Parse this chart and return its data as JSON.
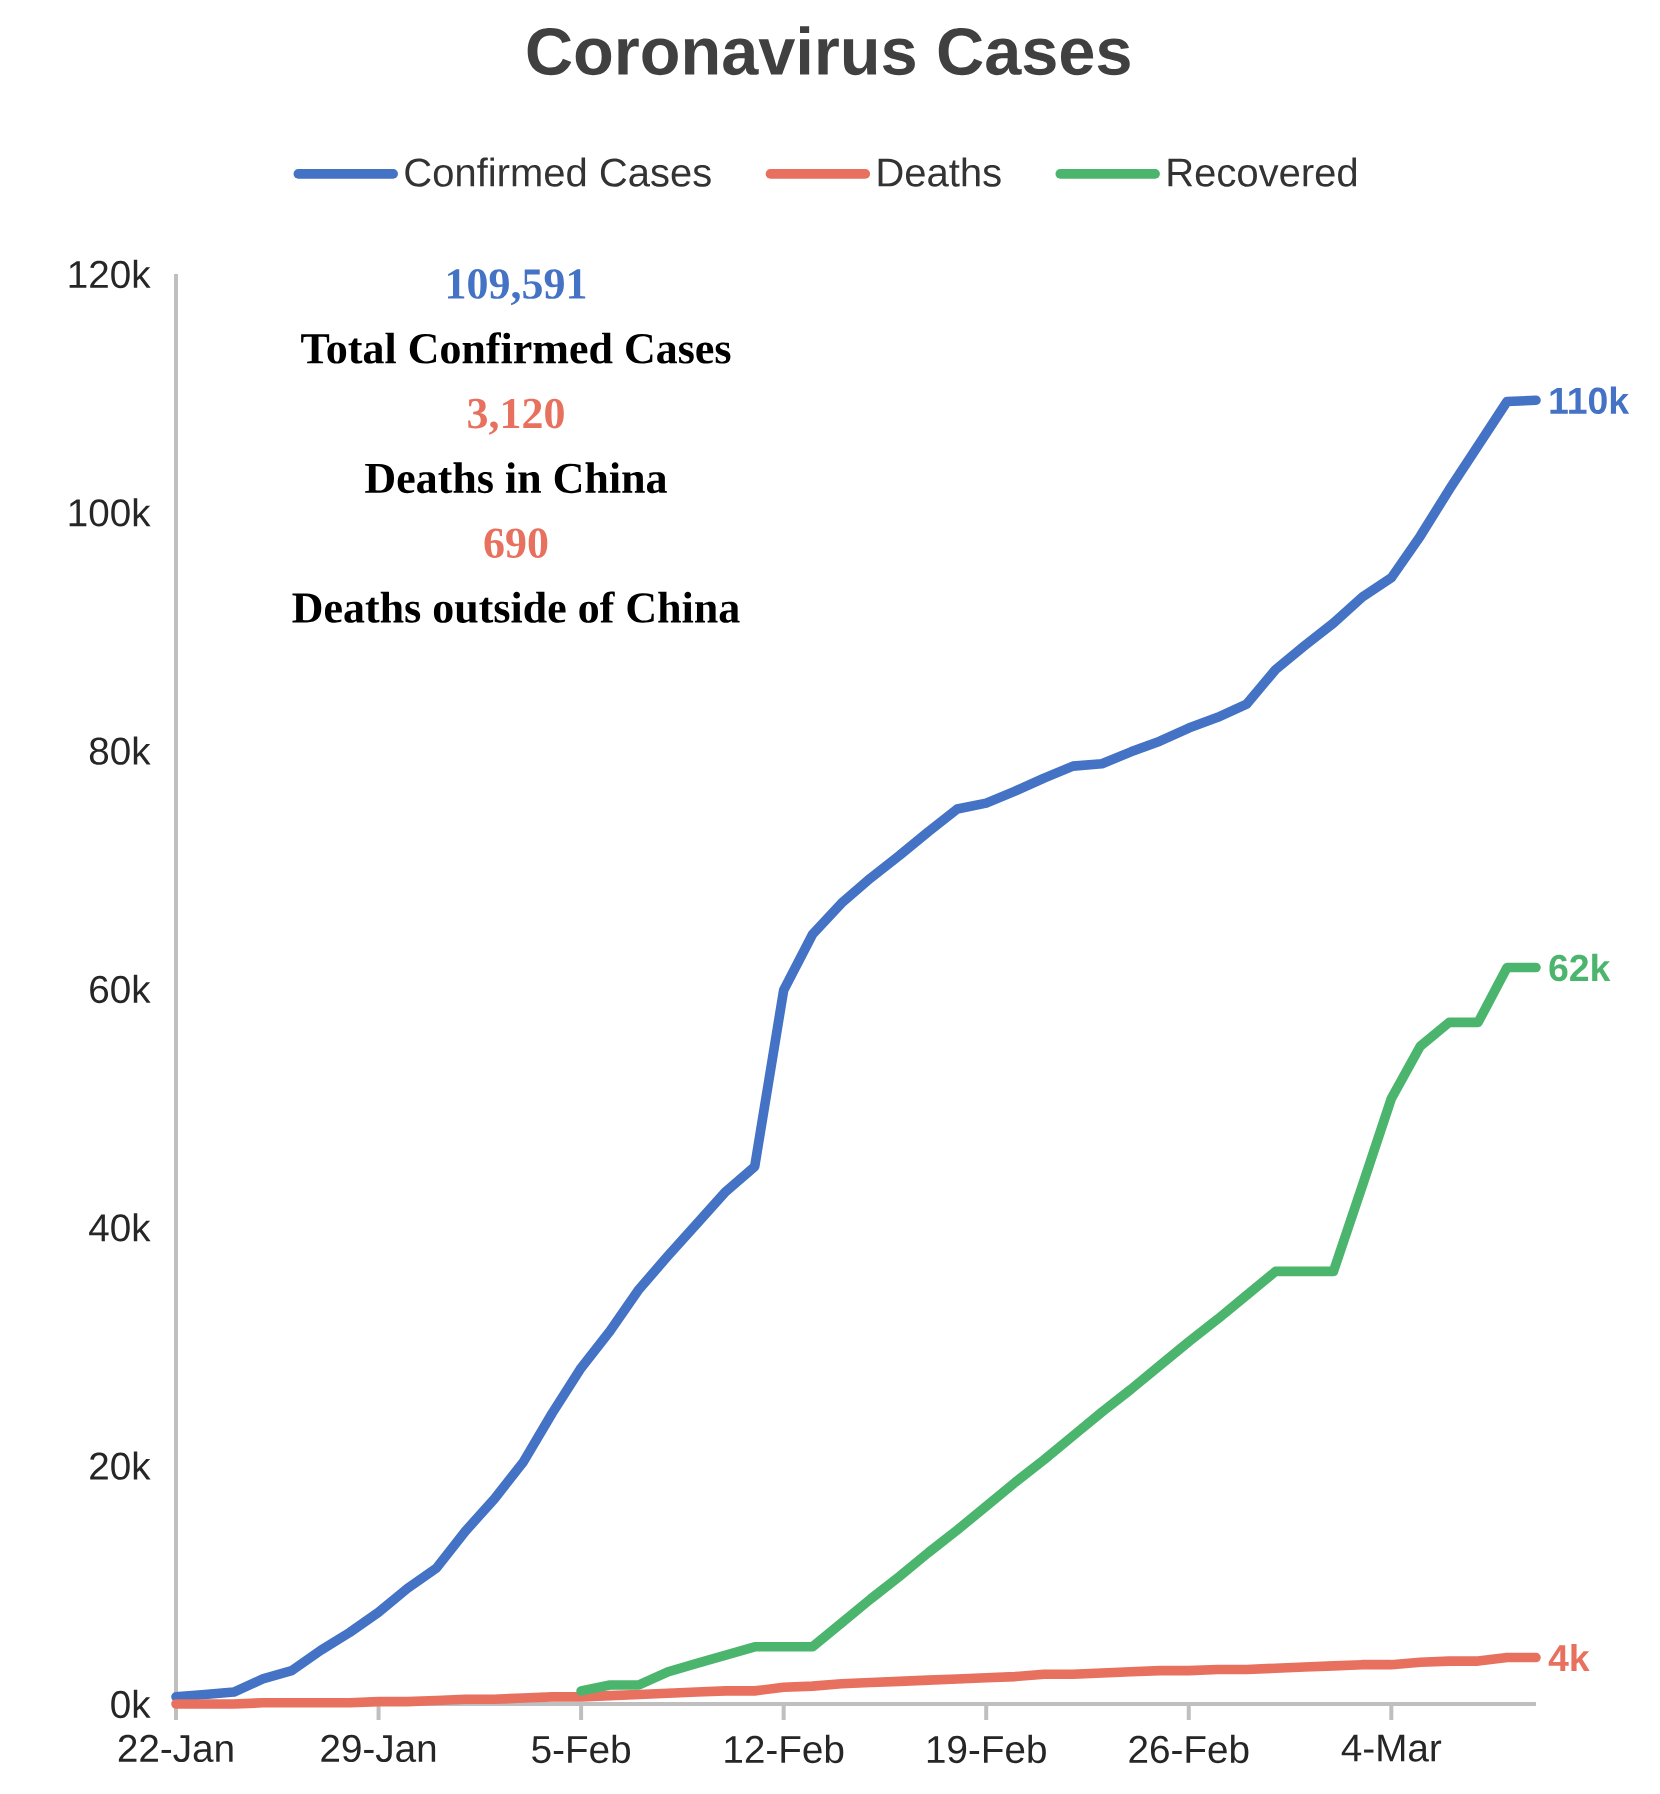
{
  "chart_data": {
    "type": "line",
    "title": "Coronavirus Cases",
    "categories": [
      "22-Jan",
      null,
      null,
      null,
      null,
      null,
      null,
      "29-Jan",
      null,
      null,
      null,
      null,
      null,
      null,
      "5-Feb",
      null,
      null,
      null,
      null,
      null,
      null,
      "12-Feb",
      null,
      null,
      null,
      null,
      null,
      null,
      "19-Feb",
      null,
      null,
      null,
      null,
      null,
      null,
      "26-Feb",
      null,
      null,
      null,
      null,
      null,
      null,
      "4-Mar",
      null,
      null,
      null,
      null,
      null
    ],
    "series": [
      {
        "name": "Confirmed Cases",
        "color": "#4472c4",
        "values": [
          600,
          800,
          1000,
          2100,
          2800,
          4500,
          6000,
          7700,
          9700,
          11400,
          14500,
          17200,
          20300,
          24400,
          28200,
          31300,
          34800,
          37600,
          40300,
          43000,
          45100,
          59900,
          64600,
          67200,
          69300,
          71200,
          73200,
          75100,
          75600,
          76600,
          77700,
          78700,
          78900,
          79900,
          80800,
          81900,
          82800,
          83900,
          86800,
          88800,
          90700,
          92900,
          94500,
          98000,
          101900,
          105600,
          109300,
          109400
        ]
      },
      {
        "name": "Deaths",
        "color": "#e8705f",
        "values": [
          0,
          0,
          0,
          100,
          100,
          100,
          100,
          200,
          200,
          300,
          400,
          400,
          500,
          600,
          600,
          700,
          800,
          900,
          1000,
          1100,
          1100,
          1400,
          1500,
          1700,
          1800,
          1900,
          2000,
          2100,
          2200,
          2300,
          2500,
          2500,
          2600,
          2700,
          2800,
          2800,
          2900,
          2900,
          3000,
          3100,
          3200,
          3300,
          3300,
          3500,
          3600,
          3600,
          3900,
          3900
        ]
      },
      {
        "name": "Recovered",
        "color": "#4cb56d",
        "values": [
          null,
          null,
          null,
          null,
          null,
          null,
          null,
          null,
          null,
          null,
          null,
          null,
          null,
          null,
          1100,
          1600,
          1600,
          2700,
          3400,
          4100,
          4800,
          4800,
          4800,
          6800,
          8800,
          10700,
          12700,
          14600,
          16600,
          18600,
          20500,
          22500,
          24500,
          26400,
          28400,
          30400,
          32300,
          34300,
          36300,
          36300,
          36300,
          43500,
          50800,
          55200,
          57200,
          57200,
          61800,
          61800
        ]
      }
    ],
    "ylim": [
      0,
      120000
    ],
    "yticks": [
      {
        "value": 0,
        "label": "0k"
      },
      {
        "value": 20000,
        "label": "20k"
      },
      {
        "value": 40000,
        "label": "40k"
      },
      {
        "value": 60000,
        "label": "60k"
      },
      {
        "value": 80000,
        "label": "80k"
      },
      {
        "value": 100000,
        "label": "100k"
      },
      {
        "value": 120000,
        "label": "120k"
      }
    ],
    "legend": "top",
    "annotations": [
      "109,591",
      "Total Confirmed Cases",
      "3,120",
      "Deaths in China",
      "690",
      "Deaths outside of China",
      "110k",
      "62k",
      "4k"
    ]
  }
}
